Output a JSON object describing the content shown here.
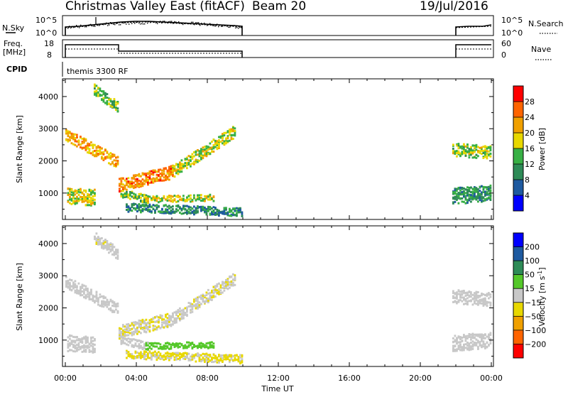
{
  "header": {
    "title": "Christmas Valley East (fitACF)",
    "beam": "Beam 20",
    "date": "19/Jul/2016"
  },
  "top_panels": {
    "nsky_label": "N.Sky",
    "nsky_ticks": [
      "10^5",
      "10^0"
    ],
    "nsearch_label": "N.Search",
    "nsearch_ticks": [
      "10^5",
      "10^0"
    ],
    "freq_label": "Freq.",
    "freq_unit": "[MHz]",
    "freq_ticks": [
      "18",
      "8"
    ],
    "nave_label": "Nave",
    "nave_ticks": [
      "60",
      "0"
    ],
    "cpid_label": "CPID",
    "cpid_text": "themis 3300 RF"
  },
  "xaxis": {
    "label": "Time UT",
    "ticks": [
      "00:00",
      "04:00",
      "08:00",
      "12:00",
      "16:00",
      "20:00",
      "00:00"
    ]
  },
  "colors": {
    "power": [
      "#0000ff",
      "#1e5aa0",
      "#2e8b57",
      "#38b045",
      "#e8d800",
      "#f0a000",
      "#ff6400",
      "#ff0000"
    ],
    "velocity": [
      "#ff0000",
      "#ff6400",
      "#f0a000",
      "#e8d800",
      "#c8c8c8",
      "#55c82a",
      "#2e8b57",
      "#1e5aa0",
      "#0000ff"
    ]
  },
  "chart_data": [
    {
      "type": "heatmap",
      "name": "power",
      "ylabel": "Slant Range [km]",
      "yticks": [
        "4000",
        "3000",
        "2000",
        "1000"
      ],
      "ylim": [
        180,
        4550
      ],
      "xlim_hours": [
        0,
        24
      ],
      "colorbar_label": "Power [dB]",
      "colorbar_ticks": [
        "28",
        "24",
        "20",
        "16",
        "12",
        "8",
        "4"
      ],
      "colorbar_range": [
        0,
        32
      ],
      "features": [
        {
          "t0": 0.0,
          "t1": 2.95,
          "r0": 2800,
          "r1": 1950,
          "width": 380,
          "value": 22
        },
        {
          "t0": 0.1,
          "t1": 1.7,
          "r0": 900,
          "r1": 850,
          "width": 500,
          "value": 18
        },
        {
          "t0": 1.6,
          "t1": 3.0,
          "r0": 4200,
          "r1": 3650,
          "width": 350,
          "value": 14
        },
        {
          "t0": 3.0,
          "t1": 6.0,
          "r0": 1250,
          "r1": 1650,
          "width": 420,
          "value": 24
        },
        {
          "t0": 6.0,
          "t1": 9.5,
          "r0": 1650,
          "r1": 2900,
          "width": 380,
          "value": 17
        },
        {
          "t0": 3.1,
          "t1": 4.6,
          "r0": 1000,
          "r1": 800,
          "width": 250,
          "value": 15
        },
        {
          "t0": 4.5,
          "t1": 8.3,
          "r0": 800,
          "r1": 850,
          "width": 200,
          "value": 18
        },
        {
          "t0": 3.4,
          "t1": 9.9,
          "r0": 550,
          "r1": 400,
          "width": 260,
          "value": 10
        },
        {
          "t0": 21.8,
          "t1": 24.0,
          "r0": 2350,
          "r1": 2250,
          "width": 420,
          "value": 16
        },
        {
          "t0": 21.8,
          "t1": 24.0,
          "r0": 900,
          "r1": 1000,
          "width": 500,
          "value": 11
        }
      ]
    },
    {
      "type": "heatmap",
      "name": "velocity",
      "ylabel": "Slant Range [km]",
      "yticks": [
        "4000",
        "3000",
        "2000",
        "1000"
      ],
      "ylim": [
        180,
        4550
      ],
      "xlim_hours": [
        0,
        24
      ],
      "colorbar_label": "Velocity [m s^-1]",
      "colorbar_ticks": [
        "200",
        "100",
        "50",
        "15",
        "−15",
        "−50",
        "−100",
        "−200"
      ],
      "colorbar_levels": [
        -250,
        -200,
        -100,
        -50,
        -15,
        15,
        50,
        100,
        200,
        250
      ],
      "features": [
        {
          "t0": 0.0,
          "t1": 2.95,
          "r0": 2800,
          "r1": 1950,
          "width": 380,
          "value": 0
        },
        {
          "t0": 0.1,
          "t1": 1.7,
          "r0": 900,
          "r1": 850,
          "width": 500,
          "value": 0
        },
        {
          "t0": 1.6,
          "t1": 3.0,
          "r0": 4200,
          "r1": 3650,
          "width": 350,
          "value": -5
        },
        {
          "t0": 3.0,
          "t1": 6.0,
          "r0": 1250,
          "r1": 1650,
          "width": 420,
          "value": -10
        },
        {
          "t0": 6.0,
          "t1": 9.5,
          "r0": 1650,
          "r1": 2900,
          "width": 380,
          "value": -8
        },
        {
          "t0": 3.1,
          "t1": 4.6,
          "r0": 1000,
          "r1": 800,
          "width": 250,
          "value": 0
        },
        {
          "t0": 4.5,
          "t1": 8.3,
          "r0": 800,
          "r1": 850,
          "width": 200,
          "value": 30
        },
        {
          "t0": 3.4,
          "t1": 9.9,
          "r0": 550,
          "r1": 400,
          "width": 260,
          "value": -20
        },
        {
          "t0": 21.8,
          "t1": 24.0,
          "r0": 2350,
          "r1": 2250,
          "width": 420,
          "value": 0
        },
        {
          "t0": 21.8,
          "t1": 24.0,
          "r0": 900,
          "r1": 1000,
          "width": 500,
          "value": 0
        }
      ]
    }
  ]
}
